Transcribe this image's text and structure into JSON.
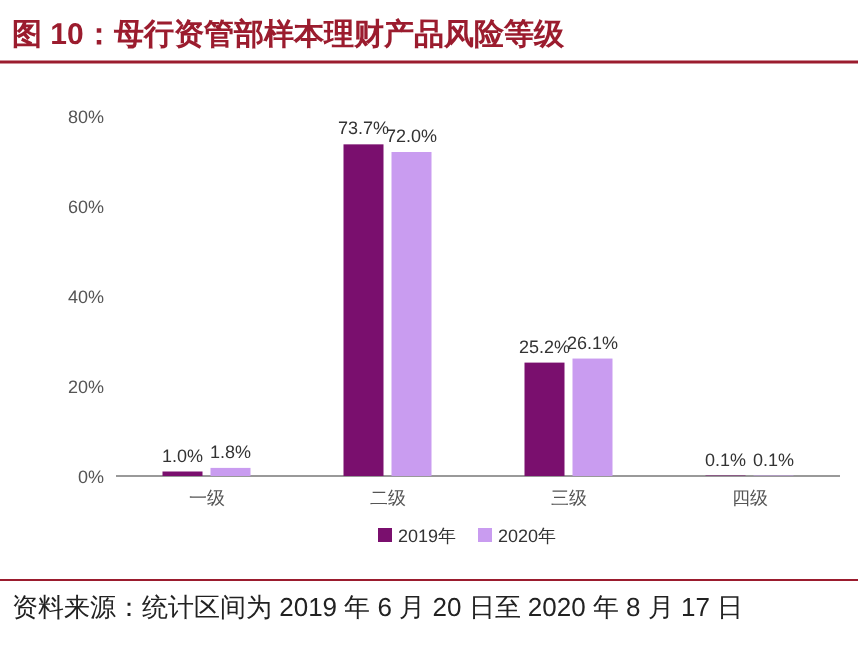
{
  "chart_data": {
    "type": "bar",
    "title": "图 10：母行资管部样本理财产品风险等级",
    "categories": [
      "一级",
      "二级",
      "三级",
      "四级"
    ],
    "series": [
      {
        "name": "2019年",
        "color": "#7a0f6e",
        "values": [
          1.0,
          73.7,
          25.2,
          0.1
        ],
        "value_labels": [
          "1.0%",
          "73.7%",
          "25.2%",
          "0.1%"
        ]
      },
      {
        "name": "2020年",
        "color": "#c99cf0",
        "values": [
          1.8,
          72.0,
          26.1,
          0.1
        ],
        "value_labels": [
          "1.8%",
          "72.0%",
          "26.1%",
          "0.1%"
        ]
      }
    ],
    "ylim": [
      0,
      80
    ],
    "yticks": [
      {
        "value": 0,
        "label": "0%"
      },
      {
        "value": 20,
        "label": "20%"
      },
      {
        "value": 40,
        "label": "40%"
      },
      {
        "value": 60,
        "label": "60%"
      },
      {
        "value": 80,
        "label": "80%"
      }
    ],
    "legend": "bottom",
    "annotations": [
      "资料来源：统计区间为 2019 年 6 月 20 日至 2020 年 8 月 17 日"
    ]
  }
}
